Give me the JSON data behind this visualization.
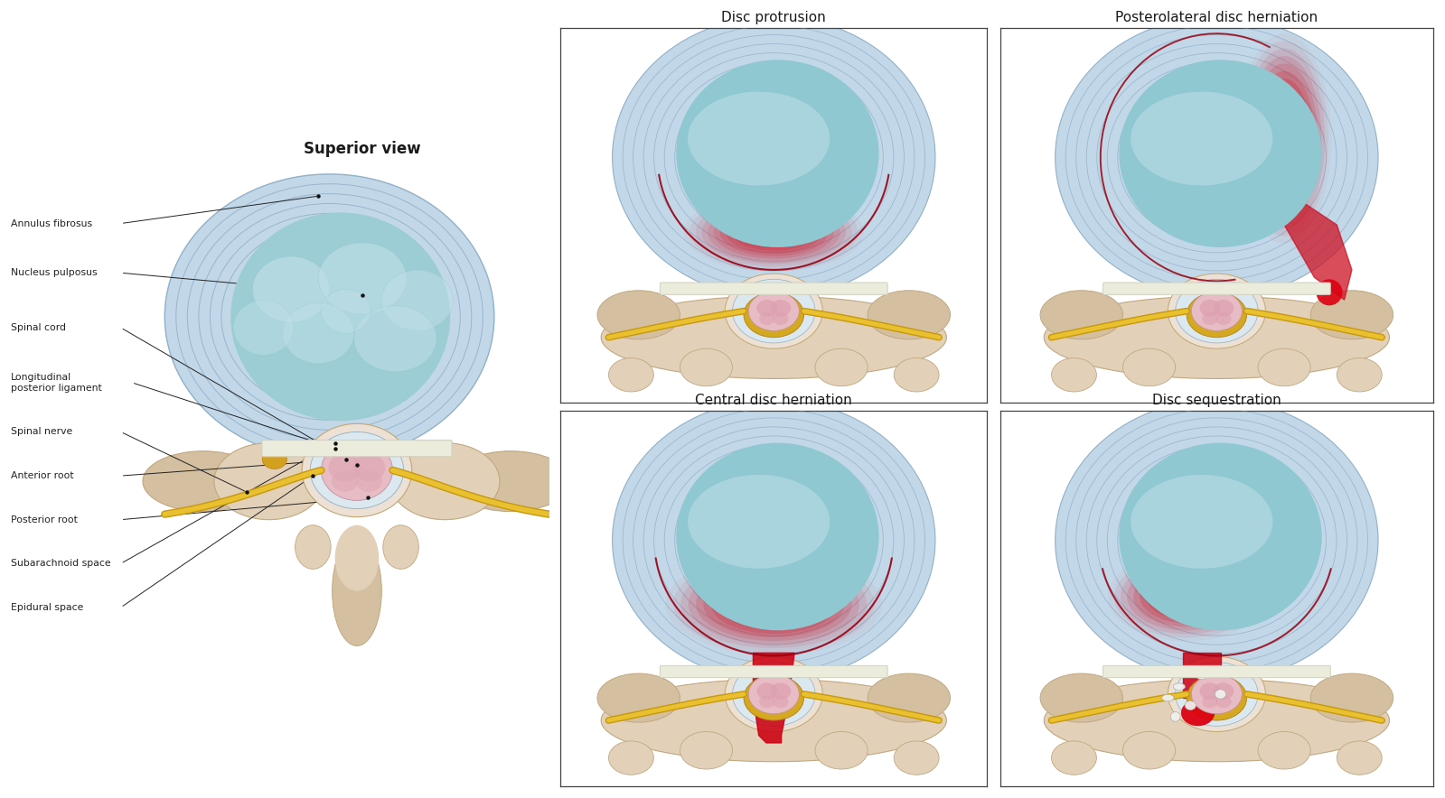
{
  "bg_color": "#ffffff",
  "title_color": "#1a1a1a",
  "label_color": "#222222",
  "panel_titles": [
    "Disc protrusion",
    "Posterolateral disc herniation",
    "Central disc herniation",
    "Disc sequestration"
  ],
  "main_title": "Superior view",
  "annulus_fill": "#c2d8e8",
  "annulus_ring": "#8aaec8",
  "nucleus_fill": "#a8d4d8",
  "nucleus_hi": "#c8e8ec",
  "bone_mid": "#d4c0a0",
  "bone_light": "#e2d0b8",
  "bone_dark": "#c0a880",
  "nerve_dark": "#c8980c",
  "nerve_light": "#e8c030",
  "cord_pink": "#e8bcc4",
  "canal_fill": "#ede0d4",
  "lig_white": "#ececdc",
  "red_dark": "#cc1122",
  "red_light": "#e05060"
}
